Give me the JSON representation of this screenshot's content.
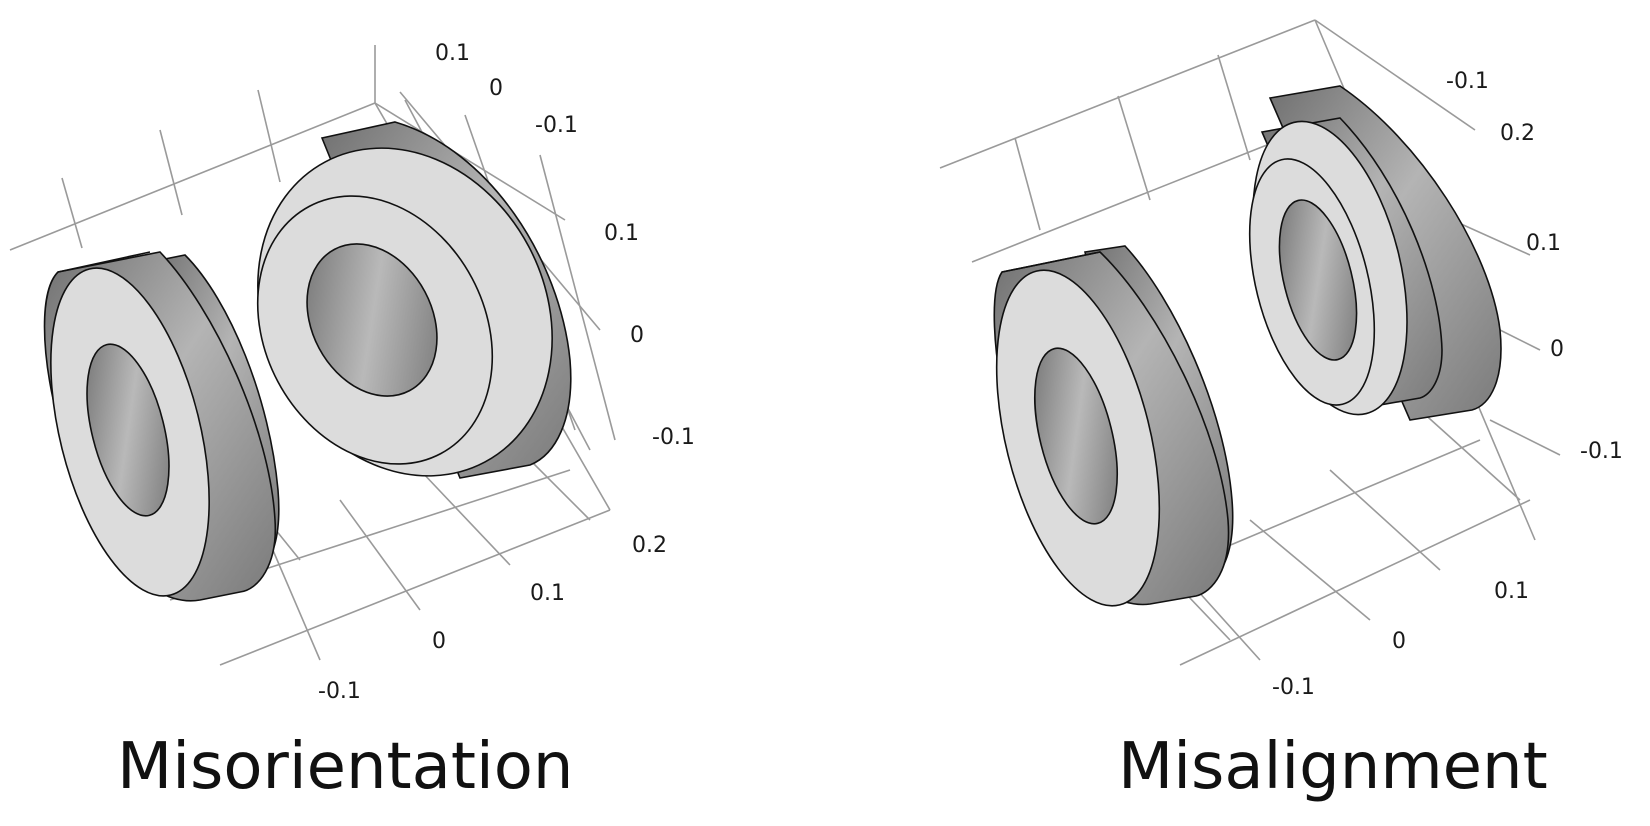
{
  "panels": [
    {
      "caption": "Misorientation",
      "axis_ticks": {
        "axis_a": [
          "0.1",
          "0",
          "-0.1"
        ],
        "axis_b": [
          "0.1",
          "0",
          "-0.1"
        ],
        "axis_c": [
          "0.2",
          "0.1",
          "0",
          "-0.1"
        ]
      }
    },
    {
      "caption": "Misalignment",
      "axis_ticks": {
        "axis_a": [
          "-0.1",
          "0.2",
          "0.1",
          "0",
          "-0.1"
        ],
        "axis_c": [
          "0.1",
          "0",
          "-0.1"
        ]
      }
    }
  ],
  "colors": {
    "background": "#ffffff",
    "grid": "#9a9a9a",
    "ring_face": "#dcdcdc",
    "ring_side": "#8c8c8c",
    "outline": "#111111"
  }
}
